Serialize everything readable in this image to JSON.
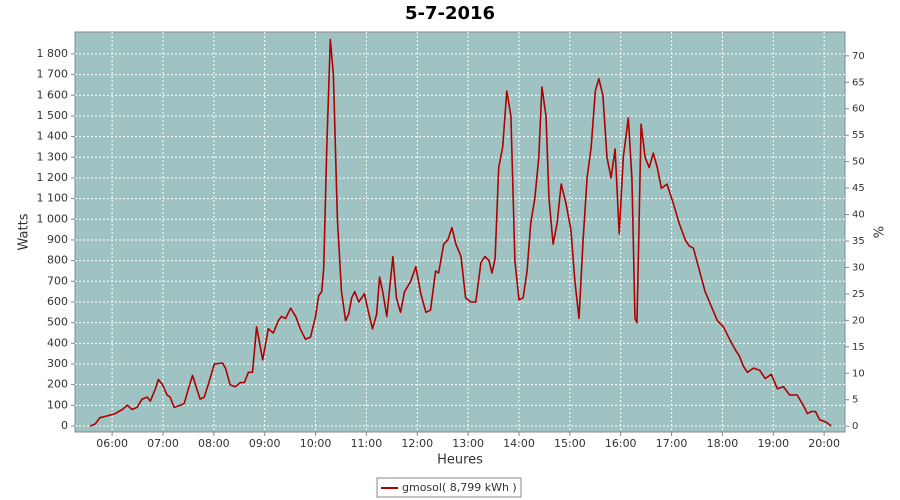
{
  "chart_data": {
    "type": "line",
    "title": "5-7-2016",
    "x_label": "Heures",
    "y_label": "Watts",
    "y2_label": "%",
    "xlim": [
      5.27,
      20.41
    ],
    "xticks": [
      {
        "value": 6,
        "label": "06:00"
      },
      {
        "value": 7,
        "label": "07:00"
      },
      {
        "value": 8,
        "label": "08:00"
      },
      {
        "value": 9,
        "label": "09:00"
      },
      {
        "value": 10,
        "label": "10:00"
      },
      {
        "value": 11,
        "label": "11:00"
      },
      {
        "value": 12,
        "label": "12:00"
      },
      {
        "value": 13,
        "label": "13:00"
      },
      {
        "value": 14,
        "label": "14:00"
      },
      {
        "value": 15,
        "label": "15:00"
      },
      {
        "value": 16,
        "label": "16:00"
      },
      {
        "value": 17,
        "label": "17:00"
      },
      {
        "value": 18,
        "label": "18:00"
      },
      {
        "value": 19,
        "label": "19:00"
      },
      {
        "value": 20,
        "label": "20:00"
      }
    ],
    "ylim": [
      -29,
      1906
    ],
    "yticks": [
      0,
      100,
      200,
      300,
      400,
      500,
      600,
      700,
      800,
      900,
      {
        "value": 1000,
        "label": "1 000"
      },
      {
        "value": 1100,
        "label": "1 100"
      },
      {
        "value": 1200,
        "label": "1 200"
      },
      {
        "value": 1300,
        "label": "1 300"
      },
      {
        "value": 1400,
        "label": "1 400"
      },
      {
        "value": 1500,
        "label": "1 500"
      },
      {
        "value": 1600,
        "label": "1 600"
      },
      {
        "value": 1700,
        "label": "1 700"
      },
      {
        "value": 1800,
        "label": "1 800"
      }
    ],
    "y2lim": [
      -1.1,
      74.5
    ],
    "y2ticks": [
      0,
      5,
      10,
      15,
      20,
      25,
      30,
      35,
      40,
      45,
      50,
      55,
      60,
      65,
      70
    ],
    "grid": true,
    "plot_background": "#9fc3c3",
    "legend": "bottom",
    "series": [
      {
        "name": "gmosol( 8,799 kWh )",
        "color": "#b00000",
        "x": [
          5.57,
          5.67,
          5.76,
          5.92,
          6.06,
          6.2,
          6.3,
          6.39,
          6.49,
          6.59,
          6.69,
          6.75,
          6.85,
          6.91,
          6.99,
          7.08,
          7.14,
          7.22,
          7.34,
          7.42,
          7.5,
          7.58,
          7.64,
          7.73,
          7.81,
          7.89,
          8.01,
          8.17,
          8.23,
          8.32,
          8.42,
          8.52,
          8.6,
          8.68,
          8.76,
          8.84,
          8.96,
          9.07,
          9.17,
          9.27,
          9.33,
          9.41,
          9.51,
          9.61,
          9.7,
          9.8,
          9.9,
          10.0,
          10.06,
          10.12,
          10.16,
          10.22,
          10.29,
          10.35,
          10.43,
          10.51,
          10.59,
          10.65,
          10.71,
          10.77,
          10.85,
          10.96,
          11.04,
          11.12,
          11.2,
          11.26,
          11.32,
          11.4,
          11.52,
          11.59,
          11.67,
          11.75,
          11.87,
          11.97,
          12.07,
          12.17,
          12.26,
          12.36,
          12.42,
          12.52,
          12.6,
          12.68,
          12.76,
          12.86,
          12.95,
          13.05,
          13.15,
          13.25,
          13.33,
          13.41,
          13.47,
          13.53,
          13.6,
          13.68,
          13.76,
          13.84,
          13.92,
          14.0,
          14.08,
          14.16,
          14.23,
          14.31,
          14.39,
          14.45,
          14.53,
          14.59,
          14.67,
          14.75,
          14.83,
          14.92,
          15.02,
          15.1,
          15.18,
          15.26,
          15.34,
          15.42,
          15.5,
          15.57,
          15.65,
          15.73,
          15.81,
          15.89,
          15.97,
          16.05,
          16.15,
          16.22,
          16.28,
          16.32,
          16.4,
          16.48,
          16.56,
          16.64,
          16.72,
          16.8,
          16.91,
          17.03,
          17.15,
          17.27,
          17.35,
          17.43,
          17.54,
          17.66,
          17.78,
          17.9,
          18.02,
          18.14,
          18.25,
          18.33,
          18.41,
          18.49,
          18.61,
          18.73,
          18.84,
          18.96,
          19.08,
          19.2,
          19.32,
          19.47,
          19.59,
          19.67,
          19.75,
          19.83,
          19.91,
          20.03,
          20.14
        ],
        "values": [
          0,
          10,
          40,
          50,
          60,
          80,
          100,
          80,
          90,
          130,
          140,
          120,
          180,
          225,
          200,
          150,
          140,
          90,
          100,
          110,
          180,
          245,
          200,
          130,
          140,
          200,
          300,
          305,
          280,
          200,
          190,
          210,
          210,
          260,
          260,
          480,
          320,
          470,
          450,
          510,
          530,
          520,
          570,
          530,
          470,
          420,
          430,
          530,
          630,
          650,
          760,
          1350,
          1870,
          1700,
          1000,
          650,
          510,
          540,
          620,
          650,
          600,
          640,
          550,
          470,
          540,
          720,
          650,
          530,
          820,
          620,
          550,
          650,
          700,
          770,
          640,
          550,
          560,
          750,
          740,
          880,
          900,
          960,
          880,
          820,
          620,
          600,
          600,
          790,
          820,
          800,
          740,
          810,
          1250,
          1350,
          1620,
          1500,
          800,
          610,
          620,
          750,
          980,
          1100,
          1300,
          1640,
          1500,
          1100,
          880,
          980,
          1170,
          1080,
          950,
          700,
          520,
          900,
          1200,
          1350,
          1620,
          1680,
          1600,
          1300,
          1200,
          1340,
          930,
          1300,
          1490,
          1200,
          520,
          500,
          1460,
          1300,
          1250,
          1320,
          1250,
          1150,
          1170,
          1080,
          980,
          900,
          870,
          860,
          760,
          650,
          580,
          510,
          480,
          420,
          370,
          340,
          290,
          260,
          280,
          270,
          230,
          250,
          180,
          190,
          150,
          150,
          100,
          60,
          70,
          70,
          30,
          20,
          0
        ]
      }
    ]
  }
}
